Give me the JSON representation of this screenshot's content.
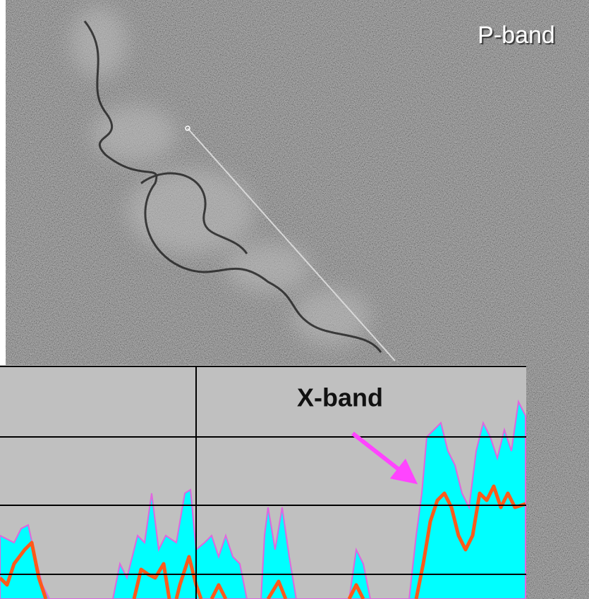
{
  "image": {
    "label": "P-band"
  },
  "chart": {
    "label": "X-band"
  }
}
